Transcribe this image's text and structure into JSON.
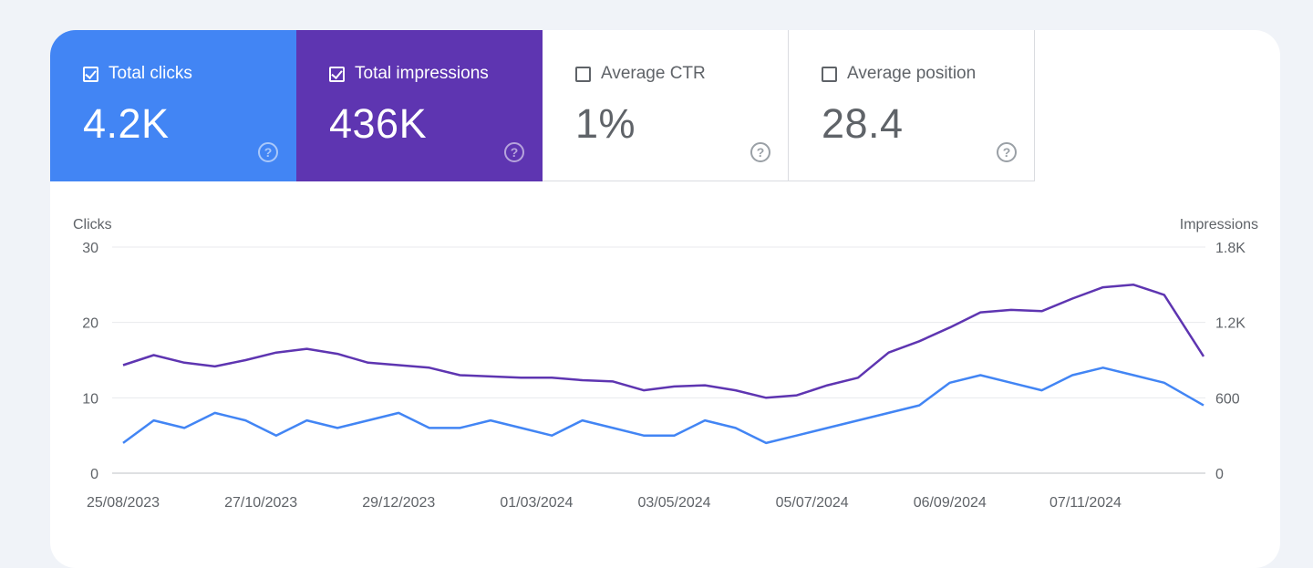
{
  "metrics": [
    {
      "label": "Total clicks",
      "value": "4.2K",
      "checked": true,
      "color": "#4285f4",
      "help_icon": "help-icon"
    },
    {
      "label": "Total impressions",
      "value": "436K",
      "checked": true,
      "color": "#5e35b1",
      "help_icon": "help-icon"
    },
    {
      "label": "Average CTR",
      "value": "1%",
      "checked": false,
      "color": "#ffffff",
      "help_icon": "help-icon"
    },
    {
      "label": "Average position",
      "value": "28.4",
      "checked": false,
      "color": "#ffffff",
      "help_icon": "help-icon"
    }
  ],
  "chart_data": {
    "type": "line",
    "y_left_label": "Clicks",
    "y_right_label": "Impressions",
    "y_left_ticks": [
      "0",
      "10",
      "20",
      "30"
    ],
    "y_right_ticks": [
      "0",
      "600",
      "1.2K",
      "1.8K"
    ],
    "y_left_range": [
      0,
      30
    ],
    "y_right_range": [
      0,
      1800
    ],
    "x_range": [
      "2023-08-25",
      "2024-12-31"
    ],
    "x_ticks": [
      "25/08/2023",
      "27/10/2023",
      "29/12/2023",
      "01/03/2024",
      "03/05/2024",
      "05/07/2024",
      "06/09/2024",
      "07/11/2024"
    ],
    "grid": true,
    "series": [
      {
        "name": "Total impressions",
        "axis": "right",
        "color": "#5e35b1",
        "x": [
          "2023-08-25",
          "2023-09-08",
          "2023-09-22",
          "2023-10-06",
          "2023-10-20",
          "2023-11-03",
          "2023-11-17",
          "2023-12-01",
          "2023-12-15",
          "2023-12-29",
          "2024-01-12",
          "2024-01-26",
          "2024-02-09",
          "2024-02-23",
          "2024-03-08",
          "2024-03-22",
          "2024-04-05",
          "2024-04-19",
          "2024-05-03",
          "2024-05-17",
          "2024-05-31",
          "2024-06-14",
          "2024-06-28",
          "2024-07-12",
          "2024-07-26",
          "2024-08-09",
          "2024-08-23",
          "2024-09-06",
          "2024-09-20",
          "2024-10-04",
          "2024-10-18",
          "2024-11-01",
          "2024-11-15",
          "2024-11-29",
          "2024-12-13",
          "2024-12-31"
        ],
        "values": [
          860,
          940,
          880,
          850,
          900,
          960,
          990,
          950,
          880,
          860,
          840,
          780,
          770,
          760,
          760,
          740,
          730,
          660,
          690,
          700,
          660,
          600,
          620,
          700,
          760,
          960,
          1050,
          1160,
          1280,
          1300,
          1290,
          1390,
          1480,
          1500,
          1420,
          930
        ]
      },
      {
        "name": "Total clicks",
        "axis": "left",
        "color": "#4285f4",
        "x": [
          "2023-08-25",
          "2023-09-08",
          "2023-09-22",
          "2023-10-06",
          "2023-10-20",
          "2023-11-03",
          "2023-11-17",
          "2023-12-01",
          "2023-12-15",
          "2023-12-29",
          "2024-01-12",
          "2024-01-26",
          "2024-02-09",
          "2024-02-23",
          "2024-03-08",
          "2024-03-22",
          "2024-04-05",
          "2024-04-19",
          "2024-05-03",
          "2024-05-17",
          "2024-05-31",
          "2024-06-14",
          "2024-06-28",
          "2024-07-12",
          "2024-07-26",
          "2024-08-09",
          "2024-08-23",
          "2024-09-06",
          "2024-09-20",
          "2024-10-04",
          "2024-10-18",
          "2024-11-01",
          "2024-11-15",
          "2024-11-29",
          "2024-12-13",
          "2024-12-31"
        ],
        "values": [
          4,
          7,
          6,
          8,
          7,
          5,
          7,
          6,
          7,
          8,
          6,
          6,
          7,
          6,
          5,
          7,
          6,
          5,
          5,
          7,
          6,
          4,
          5,
          6,
          7,
          8,
          9,
          12,
          13,
          12,
          11,
          13,
          14,
          13,
          12,
          9
        ]
      }
    ]
  }
}
